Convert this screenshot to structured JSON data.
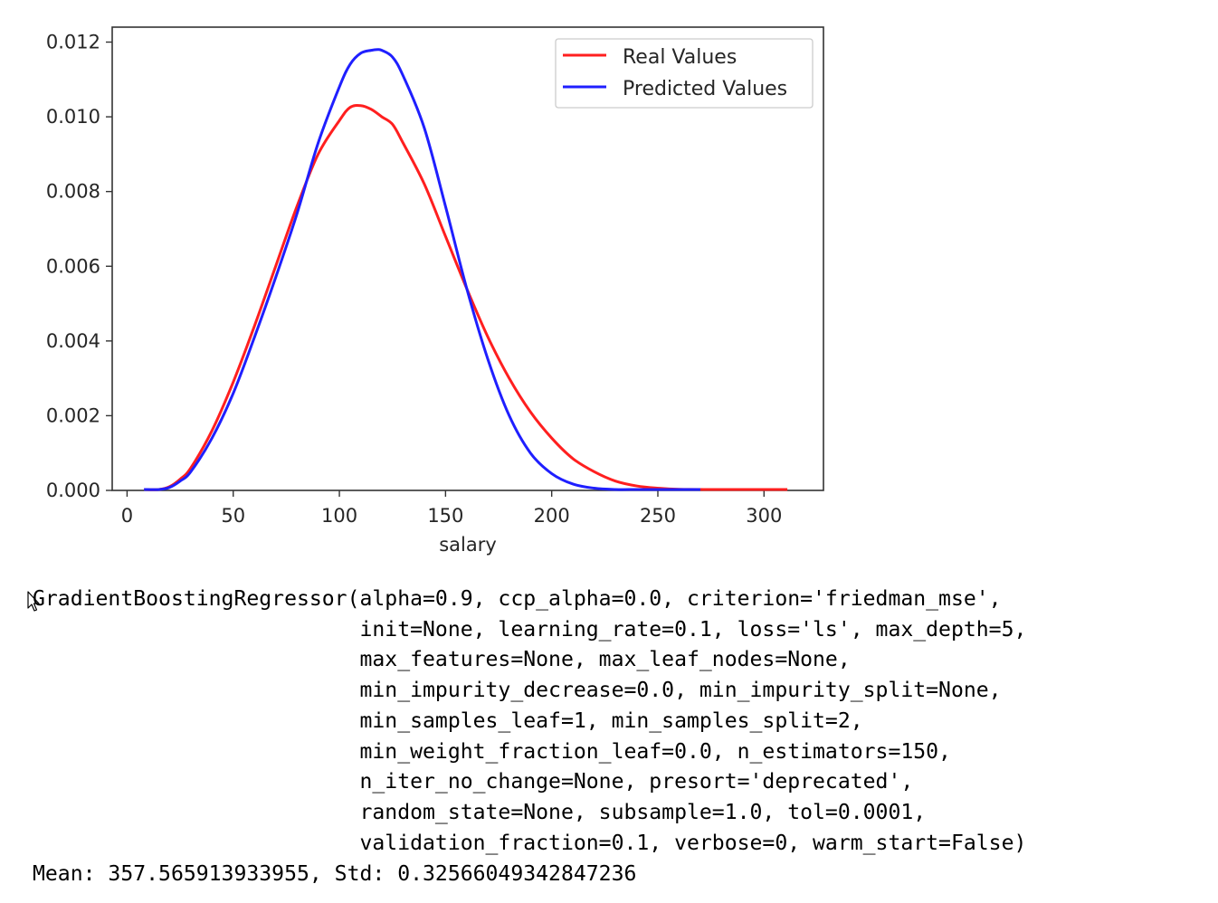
{
  "chart_data": {
    "type": "line",
    "title": "",
    "xlabel": "salary",
    "ylabel": "",
    "xlim": [
      -7,
      328
    ],
    "ylim": [
      0,
      0.0124
    ],
    "xticks": [
      0,
      50,
      100,
      150,
      200,
      250,
      300
    ],
    "xtick_labels": [
      "0",
      "50",
      "100",
      "150",
      "200",
      "250",
      "300"
    ],
    "yticks": [
      0,
      0.002,
      0.004,
      0.006,
      0.008,
      0.01,
      0.012
    ],
    "ytick_labels": [
      "0.000",
      "0.002",
      "0.004",
      "0.006",
      "0.008",
      "0.010",
      "0.012"
    ],
    "grid": false,
    "legend_position": "top-right",
    "series": [
      {
        "name": "Real Values",
        "color": "#ff1f1f",
        "x": [
          8,
          15,
          20,
          25,
          30,
          40,
          50,
          60,
          70,
          80,
          90,
          100,
          105,
          110,
          115,
          120,
          125,
          130,
          140,
          150,
          160,
          170,
          180,
          190,
          200,
          210,
          220,
          230,
          240,
          250,
          260,
          280,
          300,
          311
        ],
        "y": [
          0.0,
          2e-05,
          0.0001,
          0.0003,
          0.0006,
          0.0016,
          0.0029,
          0.0044,
          0.006,
          0.0076,
          0.009,
          0.0099,
          0.01025,
          0.0103,
          0.0102,
          0.01,
          0.0098,
          0.0093,
          0.0082,
          0.0068,
          0.0054,
          0.0041,
          0.003,
          0.0021,
          0.0014,
          0.00085,
          0.0005,
          0.00025,
          0.00012,
          6e-05,
          3e-05,
          1e-05,
          0.0,
          0.0
        ]
      },
      {
        "name": "Predicted Values",
        "color": "#1f1fff",
        "x": [
          8,
          15,
          20,
          25,
          30,
          40,
          50,
          60,
          70,
          80,
          90,
          100,
          105,
          110,
          115,
          118,
          120,
          125,
          130,
          140,
          150,
          160,
          170,
          180,
          190,
          200,
          210,
          220,
          230,
          240,
          250,
          260,
          270
        ],
        "y": [
          0.0,
          1e-05,
          8e-05,
          0.00025,
          0.0005,
          0.0014,
          0.0026,
          0.0041,
          0.0057,
          0.0074,
          0.0093,
          0.0108,
          0.0114,
          0.0117,
          0.01178,
          0.0118,
          0.01178,
          0.0116,
          0.0111,
          0.0097,
          0.0076,
          0.0054,
          0.0035,
          0.002,
          0.001,
          0.00045,
          0.00017,
          6e-05,
          2e-05,
          0.0,
          0.0,
          0.0,
          0.0
        ]
      }
    ]
  },
  "output": {
    "model_repr": "GradientBoostingRegressor(alpha=0.9, ccp_alpha=0.0, criterion='friedman_mse',\n                          init=None, learning_rate=0.1, loss='ls', max_depth=5,\n                          max_features=None, max_leaf_nodes=None,\n                          min_impurity_decrease=0.0, min_impurity_split=None,\n                          min_samples_leaf=1, min_samples_split=2,\n                          min_weight_fraction_leaf=0.0, n_estimators=150,\n                          n_iter_no_change=None, presort='deprecated',\n                          random_state=None, subsample=1.0, tol=0.0001,\n                          validation_fraction=0.1, verbose=0, warm_start=False)",
    "stats": "Mean: 357.565913933955, Std: 0.32566049342847236"
  },
  "icons": {
    "cursor": "mouse-pointer-icon"
  }
}
